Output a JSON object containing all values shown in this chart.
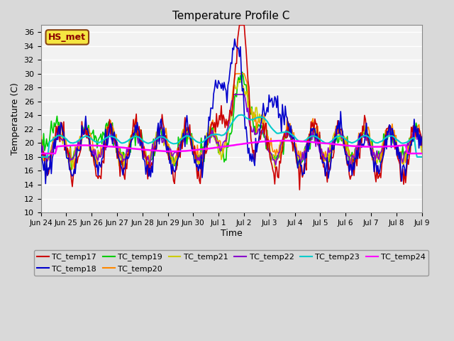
{
  "title": "Temperature Profile C",
  "xlabel": "Time",
  "ylabel": "Temperature (C)",
  "ylim": [
    10,
    37
  ],
  "yticks": [
    10,
    12,
    14,
    16,
    18,
    20,
    22,
    24,
    26,
    28,
    30,
    32,
    34,
    36
  ],
  "annotation": "HS_met",
  "fig_bg_color": "#d9d9d9",
  "plot_bg_color": "#f2f2f2",
  "series_colors": {
    "TC_temp17": "#cc0000",
    "TC_temp18": "#0000cc",
    "TC_temp19": "#00cc00",
    "TC_temp20": "#ff8800",
    "TC_temp21": "#cccc00",
    "TC_temp22": "#8800cc",
    "TC_temp23": "#00cccc",
    "TC_temp24": "#ff00ff"
  },
  "x_tick_positions": [
    0,
    1,
    2,
    3,
    4,
    5,
    6,
    7,
    8,
    9,
    10,
    11,
    12,
    13,
    14,
    15
  ],
  "x_tick_labels": [
    "Jun 24",
    "Jun 25",
    "Jun 26",
    "Jun 27",
    "Jun 28",
    "Jun 29",
    "Jun 30",
    "Jul 1",
    "Jul 2",
    "Jul 3",
    "Jul 4",
    "Jul 5",
    "Jul 6",
    "Jul 7",
    "Jul 8",
    "Jul 9"
  ],
  "num_points": 400
}
